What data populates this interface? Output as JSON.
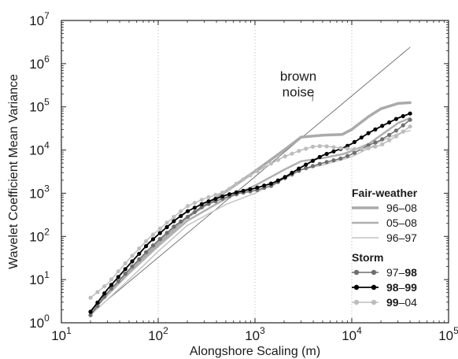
{
  "chart_data": {
    "type": "line",
    "xlabel": "Alongshore Scaling (m)",
    "ylabel": "Wavelet Coefficient Mean Variance",
    "xscale": "log",
    "yscale": "log",
    "xlim": [
      10,
      100000
    ],
    "ylim": [
      1,
      10000000
    ],
    "grid": "vertical dotted lines at each decade",
    "x_ticks": [
      {
        "value": 10,
        "base": "10",
        "exp": "1"
      },
      {
        "value": 100,
        "base": "10",
        "exp": "2"
      },
      {
        "value": 1000,
        "base": "10",
        "exp": "3"
      },
      {
        "value": 10000,
        "base": "10",
        "exp": "4"
      },
      {
        "value": 100000,
        "base": "10",
        "exp": "5"
      }
    ],
    "y_ticks": [
      {
        "value": 1,
        "base": "10",
        "exp": "0"
      },
      {
        "value": 10,
        "base": "10",
        "exp": "1"
      },
      {
        "value": 100,
        "base": "10",
        "exp": "2"
      },
      {
        "value": 1000,
        "base": "10",
        "exp": "3"
      },
      {
        "value": 10000,
        "base": "10",
        "exp": "4"
      },
      {
        "value": 100000,
        "base": "10",
        "exp": "5"
      },
      {
        "value": 1000000,
        "base": "10",
        "exp": "6"
      },
      {
        "value": 10000000,
        "base": "10",
        "exp": "7"
      }
    ],
    "annotation": {
      "lines": [
        "brown",
        "noise"
      ],
      "anchor": {
        "x": 2800,
        "y": 400000
      },
      "arrow_to": {
        "x": 4000,
        "y": 200000
      }
    },
    "legend": {
      "placement": "bottom-right",
      "groups": [
        {
          "title": "Fair-weather",
          "entries": [
            {
              "parts": [
                {
                  "text": "96–08",
                  "bold": false
                }
              ],
              "series": "fw-96-08"
            },
            {
              "parts": [
                {
                  "text": "05–08",
                  "bold": false
                }
              ],
              "series": "fw-05-08"
            },
            {
              "parts": [
                {
                  "text": "96–97",
                  "bold": false
                }
              ],
              "series": "fw-96-97"
            }
          ]
        },
        {
          "title": "Storm",
          "entries": [
            {
              "parts": [
                {
                  "text": "97–",
                  "bold": false
                },
                {
                  "text": "98",
                  "bold": true
                }
              ],
              "series": "st-97-98"
            },
            {
              "parts": [
                {
                  "text": "98",
                  "bold": true
                },
                {
                  "text": "–",
                  "bold": false
                },
                {
                  "text": "99",
                  "bold": true
                }
              ],
              "series": "st-98-99"
            },
            {
              "parts": [
                {
                  "text": "99",
                  "bold": true
                },
                {
                  "text": "–04",
                  "bold": false
                }
              ],
              "series": "st-99-04"
            }
          ]
        }
      ]
    },
    "series": [
      {
        "id": "brown",
        "color": "#555555",
        "width": 0.8,
        "markers": false,
        "x": [
          20,
          40000
        ],
        "y": [
          1.6,
          2400000
        ]
      },
      {
        "id": "fw-96-08",
        "color": "#aaaaaa",
        "width": 3.5,
        "markers": false,
        "x": [
          20,
          50,
          100,
          200,
          500,
          1000,
          2000,
          3000,
          5000,
          8000,
          10000,
          15000,
          20000,
          30000,
          40000
        ],
        "y": [
          1.8,
          15,
          70,
          280,
          1100,
          3200,
          10000,
          20000,
          22000,
          23000,
          30000,
          60000,
          90000,
          120000,
          125000
        ]
      },
      {
        "id": "fw-05-08",
        "color": "#b0b0b0",
        "width": 2.5,
        "markers": false,
        "x": [
          20,
          50,
          100,
          200,
          500,
          1000,
          2000,
          3000,
          5000,
          8000,
          10000,
          15000,
          20000,
          30000,
          40000
        ],
        "y": [
          1.8,
          14,
          60,
          230,
          750,
          1500,
          3500,
          5500,
          6500,
          8000,
          9500,
          14000,
          22000,
          42000,
          55000
        ]
      },
      {
        "id": "fw-96-97",
        "color": "#c4c4c4",
        "width": 1.5,
        "markers": false,
        "x": [
          20,
          50,
          100,
          200,
          500,
          1000,
          2000,
          3000,
          5000,
          8000,
          10000,
          15000,
          20000,
          30000,
          40000
        ],
        "y": [
          1.5,
          10,
          45,
          180,
          550,
          1000,
          2200,
          3500,
          4500,
          6000,
          7000,
          11000,
          16000,
          24000,
          28000
        ]
      },
      {
        "id": "st-97-98",
        "color": "#6e6e6e",
        "width": 1.5,
        "markers": true,
        "marker_color": "#6e6e6e",
        "x": [
          20,
          30,
          50,
          80,
          100,
          150,
          200,
          300,
          500,
          700,
          1000,
          1500,
          2000,
          3000,
          5000,
          8000,
          10000,
          15000,
          20000,
          30000,
          40000
        ],
        "y": [
          1.5,
          5,
          17,
          50,
          80,
          180,
          280,
          520,
          800,
          1000,
          1150,
          1500,
          2200,
          3500,
          5000,
          6500,
          8000,
          13000,
          17000,
          30000,
          50000
        ]
      },
      {
        "id": "st-98-99",
        "color": "#000000",
        "width": 1.8,
        "markers": true,
        "marker_color": "#000000",
        "x": [
          20,
          30,
          50,
          80,
          100,
          150,
          200,
          300,
          500,
          700,
          1000,
          1500,
          2000,
          3000,
          5000,
          8000,
          10000,
          15000,
          20000,
          30000,
          40000
        ],
        "y": [
          1.8,
          6,
          22,
          70,
          110,
          240,
          380,
          600,
          900,
          1100,
          1300,
          1700,
          2300,
          4000,
          7500,
          11000,
          14000,
          25000,
          35000,
          55000,
          70000
        ]
      },
      {
        "id": "st-99-04",
        "color": "#bdbdbd",
        "width": 1.5,
        "markers": true,
        "marker_color": "#bdbdbd",
        "x": [
          20,
          30,
          50,
          80,
          100,
          150,
          200,
          300,
          500,
          700,
          1000,
          1500,
          2000,
          3000,
          4000,
          5000,
          8000,
          10000,
          15000,
          20000,
          30000,
          40000
        ],
        "y": [
          3.8,
          8,
          30,
          90,
          140,
          300,
          500,
          750,
          1100,
          1900,
          3000,
          5000,
          7000,
          10000,
          12000,
          12500,
          11000,
          10500,
          11000,
          13000,
          22000,
          35000
        ]
      }
    ]
  }
}
